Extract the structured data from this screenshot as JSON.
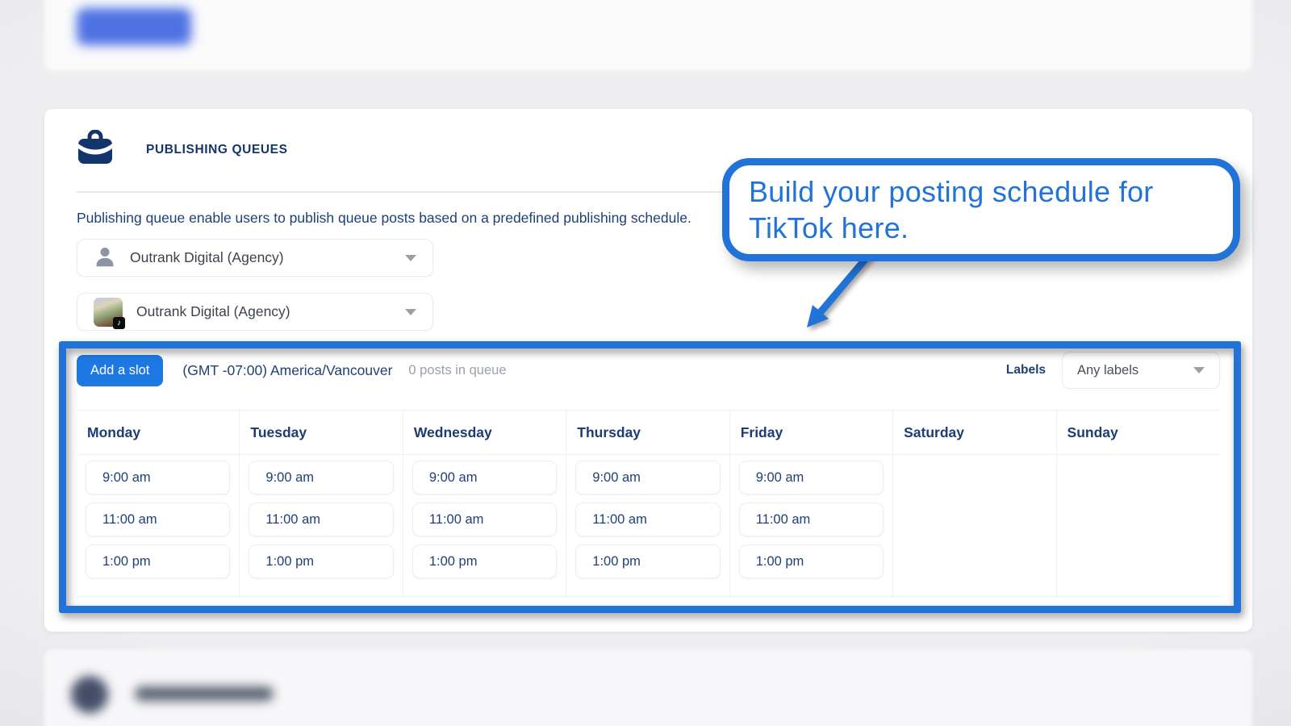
{
  "accent_color": "#2173d8",
  "header": {
    "title": "PUBLISHING QUEUES"
  },
  "description": {
    "text": "Publishing queue enable users to publish queue posts based on a predefined publishing schedule."
  },
  "selectors": [
    {
      "label": "Outrank Digital (Agency)",
      "icon": "person-icon"
    },
    {
      "label": "Outrank Digital (Agency)",
      "icon": "tiktok-avatar"
    }
  ],
  "callout": {
    "text": "Build your posting schedule for TikTok here."
  },
  "queue_bar": {
    "add_button": "Add a slot",
    "timezone": "(GMT -07:00) America/Vancouver",
    "posts_in_queue": "0 posts in queue",
    "labels_label": "Labels",
    "labels_value": "Any labels"
  },
  "schedule": {
    "days": [
      {
        "name": "Monday",
        "slots": [
          "9:00 am",
          "11:00 am",
          "1:00 pm"
        ]
      },
      {
        "name": "Tuesday",
        "slots": [
          "9:00 am",
          "11:00 am",
          "1:00 pm"
        ]
      },
      {
        "name": "Wednesday",
        "slots": [
          "9:00 am",
          "11:00 am",
          "1:00 pm"
        ]
      },
      {
        "name": "Thursday",
        "slots": [
          "9:00 am",
          "11:00 am",
          "1:00 pm"
        ]
      },
      {
        "name": "Friday",
        "slots": [
          "9:00 am",
          "11:00 am",
          "1:00 pm"
        ]
      },
      {
        "name": "Saturday",
        "slots": []
      },
      {
        "name": "Sunday",
        "slots": []
      }
    ]
  }
}
